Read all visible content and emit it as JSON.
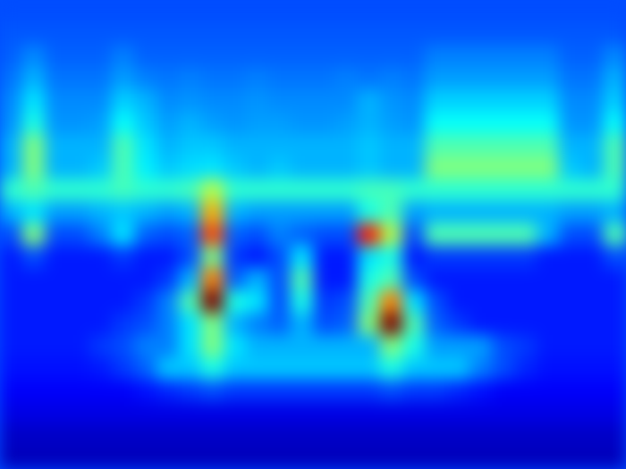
{
  "chart_data": {
    "type": "heatmap",
    "color_range": [
      0,
      1
    ],
    "tick_labels": false,
    "values": [
      [
        0.2,
        0.2,
        0.2,
        0.2,
        0.2,
        0.2,
        0.2,
        0.2,
        0.2,
        0.2,
        0.2,
        0.2,
        0.2,
        0.2,
        0.2,
        0.2,
        0.2,
        0.2,
        0.2,
        0.2,
        0.2,
        0.2,
        0.2,
        0.2,
        0.2,
        0.2,
        0.2,
        0.2
      ],
      [
        0.21,
        0.21,
        0.21,
        0.21,
        0.21,
        0.21,
        0.21,
        0.21,
        0.21,
        0.21,
        0.21,
        0.21,
        0.21,
        0.21,
        0.21,
        0.21,
        0.21,
        0.21,
        0.21,
        0.21,
        0.21,
        0.21,
        0.21,
        0.21,
        0.21,
        0.21,
        0.21,
        0.21
      ],
      [
        0.22,
        0.26,
        0.22,
        0.22,
        0.22,
        0.25,
        0.22,
        0.22,
        0.22,
        0.22,
        0.22,
        0.22,
        0.22,
        0.22,
        0.22,
        0.22,
        0.22,
        0.22,
        0.22,
        0.25,
        0.25,
        0.25,
        0.25,
        0.25,
        0.25,
        0.22,
        0.22,
        0.26
      ],
      [
        0.24,
        0.3,
        0.24,
        0.24,
        0.24,
        0.28,
        0.25,
        0.24,
        0.25,
        0.24,
        0.24,
        0.25,
        0.24,
        0.24,
        0.24,
        0.25,
        0.24,
        0.25,
        0.24,
        0.28,
        0.28,
        0.28,
        0.28,
        0.28,
        0.28,
        0.24,
        0.24,
        0.3
      ],
      [
        0.26,
        0.35,
        0.26,
        0.26,
        0.26,
        0.33,
        0.3,
        0.26,
        0.27,
        0.26,
        0.26,
        0.27,
        0.26,
        0.26,
        0.26,
        0.26,
        0.3,
        0.27,
        0.26,
        0.33,
        0.33,
        0.33,
        0.33,
        0.33,
        0.33,
        0.26,
        0.26,
        0.33
      ],
      [
        0.27,
        0.4,
        0.27,
        0.27,
        0.28,
        0.38,
        0.32,
        0.28,
        0.3,
        0.28,
        0.27,
        0.28,
        0.28,
        0.27,
        0.27,
        0.28,
        0.3,
        0.28,
        0.27,
        0.38,
        0.38,
        0.38,
        0.38,
        0.38,
        0.38,
        0.27,
        0.27,
        0.38
      ],
      [
        0.3,
        0.5,
        0.3,
        0.3,
        0.3,
        0.45,
        0.35,
        0.3,
        0.32,
        0.32,
        0.3,
        0.3,
        0.3,
        0.3,
        0.3,
        0.3,
        0.32,
        0.3,
        0.3,
        0.45,
        0.45,
        0.45,
        0.45,
        0.45,
        0.45,
        0.3,
        0.3,
        0.45
      ],
      [
        0.3,
        0.5,
        0.3,
        0.3,
        0.32,
        0.45,
        0.36,
        0.32,
        0.34,
        0.35,
        0.32,
        0.3,
        0.32,
        0.3,
        0.3,
        0.3,
        0.32,
        0.3,
        0.3,
        0.5,
        0.5,
        0.5,
        0.5,
        0.5,
        0.5,
        0.32,
        0.3,
        0.45
      ],
      [
        0.42,
        0.45,
        0.42,
        0.42,
        0.42,
        0.44,
        0.42,
        0.42,
        0.44,
        0.55,
        0.42,
        0.42,
        0.42,
        0.42,
        0.42,
        0.42,
        0.44,
        0.44,
        0.42,
        0.42,
        0.42,
        0.42,
        0.42,
        0.42,
        0.42,
        0.42,
        0.42,
        0.42
      ],
      [
        0.3,
        0.35,
        0.28,
        0.28,
        0.3,
        0.32,
        0.3,
        0.28,
        0.3,
        0.7,
        0.3,
        0.28,
        0.28,
        0.28,
        0.28,
        0.28,
        0.4,
        0.45,
        0.28,
        0.3,
        0.3,
        0.3,
        0.3,
        0.3,
        0.3,
        0.28,
        0.28,
        0.3
      ],
      [
        0.2,
        0.5,
        0.2,
        0.2,
        0.25,
        0.35,
        0.22,
        0.2,
        0.22,
        0.8,
        0.22,
        0.2,
        0.25,
        0.22,
        0.2,
        0.2,
        0.85,
        0.55,
        0.2,
        0.45,
        0.45,
        0.45,
        0.45,
        0.45,
        0.3,
        0.2,
        0.2,
        0.45
      ],
      [
        0.15,
        0.2,
        0.15,
        0.15,
        0.15,
        0.18,
        0.15,
        0.15,
        0.2,
        0.5,
        0.18,
        0.15,
        0.2,
        0.35,
        0.15,
        0.15,
        0.35,
        0.4,
        0.15,
        0.18,
        0.18,
        0.18,
        0.18,
        0.18,
        0.15,
        0.15,
        0.15,
        0.2
      ],
      [
        0.15,
        0.15,
        0.15,
        0.15,
        0.15,
        0.15,
        0.15,
        0.18,
        0.3,
        0.75,
        0.22,
        0.3,
        0.2,
        0.45,
        0.15,
        0.15,
        0.4,
        0.45,
        0.2,
        0.15,
        0.15,
        0.15,
        0.15,
        0.15,
        0.15,
        0.15,
        0.15,
        0.15
      ],
      [
        0.15,
        0.15,
        0.15,
        0.15,
        0.15,
        0.15,
        0.18,
        0.25,
        0.45,
        1.0,
        0.4,
        0.35,
        0.2,
        0.4,
        0.18,
        0.2,
        0.45,
        0.75,
        0.35,
        0.2,
        0.15,
        0.15,
        0.15,
        0.15,
        0.15,
        0.15,
        0.15,
        0.15
      ],
      [
        0.15,
        0.15,
        0.15,
        0.15,
        0.15,
        0.18,
        0.2,
        0.25,
        0.35,
        0.5,
        0.3,
        0.25,
        0.22,
        0.3,
        0.2,
        0.22,
        0.5,
        1.0,
        0.45,
        0.22,
        0.18,
        0.15,
        0.15,
        0.15,
        0.15,
        0.15,
        0.15,
        0.15
      ],
      [
        0.15,
        0.15,
        0.15,
        0.15,
        0.18,
        0.2,
        0.25,
        0.25,
        0.35,
        0.5,
        0.35,
        0.3,
        0.3,
        0.3,
        0.3,
        0.3,
        0.3,
        0.5,
        0.4,
        0.28,
        0.28,
        0.28,
        0.2,
        0.18,
        0.15,
        0.15,
        0.15,
        0.15
      ],
      [
        0.14,
        0.14,
        0.14,
        0.14,
        0.15,
        0.18,
        0.22,
        0.32,
        0.32,
        0.4,
        0.32,
        0.32,
        0.32,
        0.32,
        0.32,
        0.32,
        0.32,
        0.4,
        0.32,
        0.32,
        0.32,
        0.25,
        0.2,
        0.16,
        0.14,
        0.14,
        0.14,
        0.14
      ],
      [
        0.12,
        0.12,
        0.12,
        0.12,
        0.12,
        0.12,
        0.14,
        0.16,
        0.18,
        0.2,
        0.18,
        0.18,
        0.18,
        0.18,
        0.18,
        0.18,
        0.18,
        0.2,
        0.18,
        0.18,
        0.16,
        0.14,
        0.12,
        0.12,
        0.12,
        0.12,
        0.12,
        0.12
      ],
      [
        0.1,
        0.1,
        0.1,
        0.1,
        0.1,
        0.1,
        0.1,
        0.1,
        0.1,
        0.1,
        0.1,
        0.1,
        0.1,
        0.1,
        0.1,
        0.1,
        0.1,
        0.1,
        0.1,
        0.1,
        0.1,
        0.1,
        0.1,
        0.1,
        0.1,
        0.1,
        0.1,
        0.1
      ],
      [
        0.07,
        0.07,
        0.07,
        0.07,
        0.07,
        0.07,
        0.07,
        0.07,
        0.07,
        0.07,
        0.07,
        0.07,
        0.07,
        0.07,
        0.07,
        0.07,
        0.07,
        0.07,
        0.07,
        0.07,
        0.07,
        0.07,
        0.07,
        0.07,
        0.07,
        0.07,
        0.07,
        0.07
      ],
      [
        0.06,
        0.06,
        0.06,
        0.06,
        0.06,
        0.06,
        0.06,
        0.06,
        0.06,
        0.06,
        0.06,
        0.06,
        0.06,
        0.06,
        0.06,
        0.06,
        0.06,
        0.06,
        0.06,
        0.06,
        0.06,
        0.06,
        0.06,
        0.06,
        0.06,
        0.06,
        0.06,
        0.06
      ]
    ]
  }
}
